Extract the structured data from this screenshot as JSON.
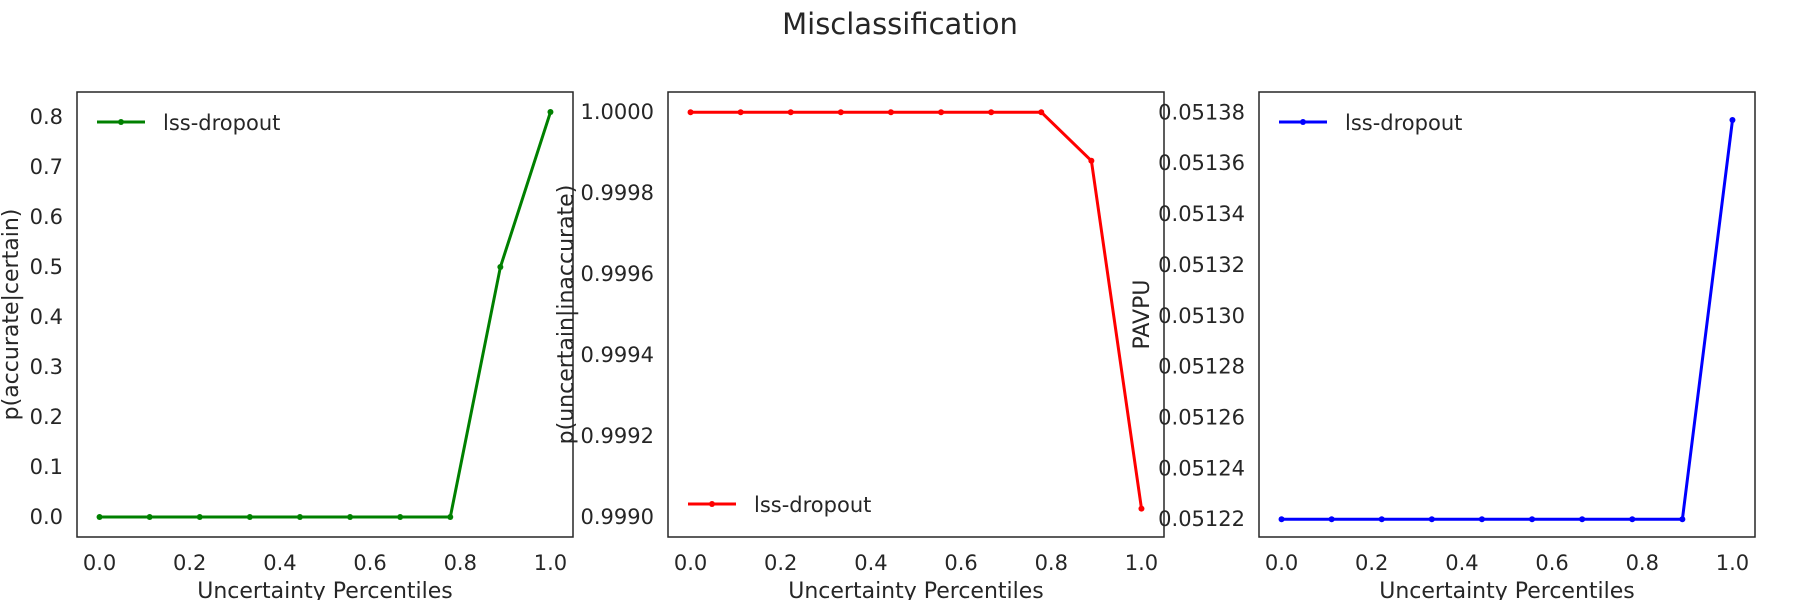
{
  "figure": {
    "title": "Misclassification"
  },
  "chart_data": [
    {
      "type": "line",
      "title": "",
      "xlabel": "Uncertainty Percentiles",
      "ylabel": "p(accurate|certain)",
      "xlim": [
        -0.05,
        1.05
      ],
      "ylim": [
        -0.04,
        0.85
      ],
      "xticks": [
        "0.0",
        "0.2",
        "0.4",
        "0.6",
        "0.8",
        "1.0"
      ],
      "yticks": [
        "0.0",
        "0.1",
        "0.2",
        "0.3",
        "0.4",
        "0.5",
        "0.6",
        "0.7",
        "0.8"
      ],
      "legend": "upper left",
      "grid": false,
      "series": [
        {
          "name": "lss-dropout",
          "color": "#008000",
          "x": [
            0.0,
            0.1111,
            0.2222,
            0.3333,
            0.4444,
            0.5556,
            0.6667,
            0.7778,
            0.8889,
            1.0
          ],
          "y": [
            0.0,
            0.0,
            0.0,
            0.0,
            0.0,
            0.0,
            0.0,
            0.0,
            0.5,
            0.81
          ]
        }
      ]
    },
    {
      "type": "line",
      "title": "",
      "xlabel": "Uncertainty Percentiles",
      "ylabel": "p(uncertain|inaccurate)",
      "xlim": [
        -0.05,
        1.05
      ],
      "ylim": [
        0.99895,
        1.00005
      ],
      "xticks": [
        "0.0",
        "0.2",
        "0.4",
        "0.6",
        "0.8",
        "1.0"
      ],
      "yticks": [
        "0.9990",
        "0.9992",
        "0.9994",
        "0.9996",
        "0.9998",
        "1.0000"
      ],
      "legend": "lower left",
      "grid": false,
      "series": [
        {
          "name": "lss-dropout",
          "color": "#ff0000",
          "x": [
            0.0,
            0.1111,
            0.2222,
            0.3333,
            0.4444,
            0.5556,
            0.6667,
            0.7778,
            0.8889,
            1.0
          ],
          "y": [
            1.0,
            1.0,
            1.0,
            1.0,
            1.0,
            1.0,
            1.0,
            1.0,
            0.99988,
            0.99902
          ]
        }
      ]
    },
    {
      "type": "line",
      "title": "",
      "xlabel": "Uncertainty Percentiles",
      "ylabel": "PAVPU",
      "xlim": [
        -0.05,
        1.05
      ],
      "ylim": [
        0.051213,
        0.051388
      ],
      "xticks": [
        "0.0",
        "0.2",
        "0.4",
        "0.6",
        "0.8",
        "1.0"
      ],
      "yticks": [
        "0.05122",
        "0.05124",
        "0.05126",
        "0.05128",
        "0.05130",
        "0.05132",
        "0.05134",
        "0.05136",
        "0.05138"
      ],
      "legend": "upper left",
      "grid": false,
      "series": [
        {
          "name": "lss-dropout",
          "color": "#0000ff",
          "x": [
            0.0,
            0.1111,
            0.2222,
            0.3333,
            0.4444,
            0.5556,
            0.6667,
            0.7778,
            0.8889,
            1.0
          ],
          "y": [
            0.05122,
            0.05122,
            0.05122,
            0.05122,
            0.05122,
            0.05122,
            0.05122,
            0.05122,
            0.05122,
            0.051377
          ]
        }
      ]
    }
  ]
}
